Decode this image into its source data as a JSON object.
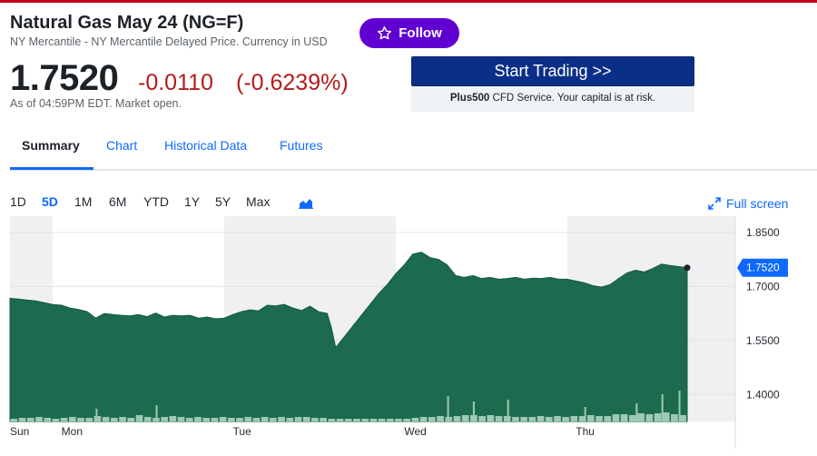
{
  "quote": {
    "title": "Natural Gas May 24 (NG=F)",
    "subtitle": "NY Mercantile - NY Mercantile Delayed Price. Currency in USD",
    "price": "1.7520",
    "change": "-0.0110",
    "change_pct": "(-0.6239%)",
    "as_of": "As of 04:59PM EDT. Market open."
  },
  "follow": {
    "label": "Follow",
    "icon": "star-outline-icon"
  },
  "ad": {
    "button_label": "Start Trading >>",
    "note_brand": "Plus500",
    "note_text": " CFD Service. Your capital is at risk."
  },
  "tabs": [
    {
      "label": "Summary",
      "active": true
    },
    {
      "label": "Chart",
      "active": false
    },
    {
      "label": "Historical Data",
      "active": false
    },
    {
      "label": "Futures",
      "active": false
    }
  ],
  "ranges": [
    {
      "label": "1D",
      "active": false
    },
    {
      "label": "5D",
      "active": true
    },
    {
      "label": "1M",
      "active": false
    },
    {
      "label": "6M",
      "active": false
    },
    {
      "label": "YTD",
      "active": false
    },
    {
      "label": "1Y",
      "active": false
    },
    {
      "label": "5Y",
      "active": false
    },
    {
      "label": "Max",
      "active": false
    }
  ],
  "fullscreen": {
    "label": "Full screen",
    "icon": "expand-arrows-icon"
  },
  "colors": {
    "area": "#1c6b4e",
    "accent": "#0f69ff",
    "negative": "#b31b1b",
    "follow": "#6001d2"
  },
  "chart_data": {
    "type": "area",
    "current_value_tag": "1.7520",
    "y_ticks": [
      "1.8500",
      "1.7000",
      "1.5500",
      "1.4000"
    ],
    "y_tick_values": [
      1.85,
      1.7,
      1.55,
      1.4
    ],
    "ylim": [
      1.325,
      1.885
    ],
    "x_labels": [
      "Sun",
      "Mon",
      "Tue",
      "Wed",
      "Thu"
    ],
    "x_label_positions": [
      0,
      6,
      26,
      46,
      66
    ],
    "x_range": [
      0,
      79
    ],
    "shaded_sessions": [
      [
        0,
        5
      ],
      [
        25,
        45
      ],
      [
        65,
        79
      ]
    ],
    "series": [
      {
        "x": [
          0,
          1,
          2,
          3,
          4,
          5,
          6,
          7,
          8,
          9,
          10,
          11,
          12,
          13,
          14,
          15,
          16,
          17,
          18,
          19,
          20,
          21,
          22,
          23,
          24,
          25,
          26,
          27,
          28,
          29,
          30,
          31,
          32,
          33,
          34,
          35,
          36,
          37,
          37.5,
          38,
          39,
          40,
          41,
          42,
          43,
          44,
          45,
          46,
          47,
          48,
          49,
          50,
          51,
          52,
          53,
          54,
          55,
          56,
          57,
          58,
          59,
          60,
          61,
          62,
          63,
          64,
          65,
          66,
          67,
          68,
          69,
          70,
          71,
          72,
          73,
          74,
          75,
          76,
          77,
          78,
          79
        ],
        "y": [
          1.667,
          1.665,
          1.662,
          1.66,
          1.655,
          1.65,
          1.648,
          1.64,
          1.636,
          1.63,
          1.612,
          1.625,
          1.622,
          1.62,
          1.618,
          1.622,
          1.616,
          1.626,
          1.615,
          1.62,
          1.618,
          1.62,
          1.612,
          1.615,
          1.61,
          1.612,
          1.622,
          1.63,
          1.635,
          1.632,
          1.648,
          1.646,
          1.65,
          1.64,
          1.633,
          1.645,
          1.63,
          1.625,
          1.585,
          1.53,
          1.56,
          1.59,
          1.62,
          1.65,
          1.68,
          1.705,
          1.735,
          1.76,
          1.79,
          1.795,
          1.78,
          1.775,
          1.76,
          1.73,
          1.725,
          1.73,
          1.722,
          1.725,
          1.72,
          1.722,
          1.725,
          1.72,
          1.723,
          1.722,
          1.725,
          1.72,
          1.72,
          1.715,
          1.71,
          1.702,
          1.698,
          1.705,
          1.722,
          1.738,
          1.745,
          1.74,
          1.75,
          1.762,
          1.758,
          1.755,
          1.752
        ]
      }
    ],
    "volume": [
      3,
      4,
      4,
      5,
      4,
      3,
      4,
      5,
      4,
      4,
      6,
      5,
      4,
      5,
      4,
      7,
      5,
      4,
      5,
      6,
      5,
      4,
      5,
      4,
      4,
      5,
      4,
      4,
      5,
      4,
      5,
      4,
      5,
      4,
      5,
      5,
      4,
      4,
      3,
      3,
      3,
      3,
      3,
      3,
      3,
      3,
      3,
      3,
      4,
      5,
      5,
      6,
      5,
      6,
      7,
      7,
      6,
      7,
      6,
      6,
      5,
      5,
      5,
      6,
      5,
      6,
      5,
      6,
      6,
      7,
      6,
      6,
      8,
      8,
      7,
      9,
      8,
      9,
      10,
      8,
      7
    ],
    "volume_spikes": [
      [
        10,
        14
      ],
      [
        17,
        18
      ],
      [
        51,
        28
      ],
      [
        54,
        22
      ],
      [
        58,
        24
      ],
      [
        67,
        16
      ],
      [
        73,
        20
      ],
      [
        76,
        30
      ],
      [
        78,
        34
      ]
    ]
  }
}
